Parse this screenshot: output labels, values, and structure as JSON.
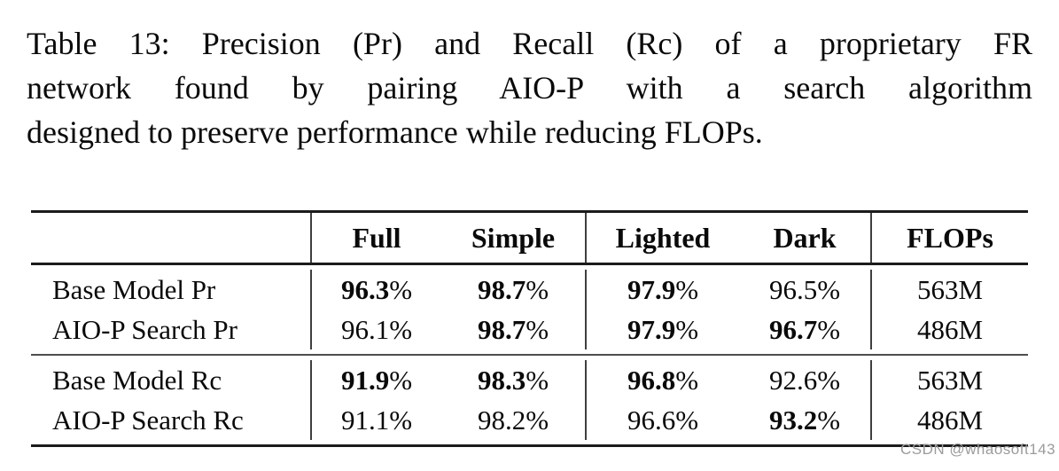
{
  "caption": {
    "lines": [
      "Table 13: Precision (Pr) and Recall (Rc) of a proprietary FR",
      "network found by pairing AIO-P with a search algorithm",
      "designed to preserve performance while reducing FLOPs."
    ]
  },
  "table": {
    "columns": [
      "",
      "Full",
      "Simple",
      "Lighted",
      "Dark",
      "FLOPs"
    ],
    "groups": [
      {
        "name": "precision",
        "rows": [
          {
            "label": "Base Model Pr",
            "cells": [
              {
                "num": "96.3",
                "suffix": "%",
                "bold": true
              },
              {
                "num": "98.7",
                "suffix": "%",
                "bold": true
              },
              {
                "num": "97.9",
                "suffix": "%",
                "bold": true
              },
              {
                "num": "96.5",
                "suffix": "%",
                "bold": false
              },
              {
                "num": "563M",
                "suffix": "",
                "bold": false
              }
            ]
          },
          {
            "label": "AIO-P Search Pr",
            "cells": [
              {
                "num": "96.1",
                "suffix": "%",
                "bold": false
              },
              {
                "num": "98.7",
                "suffix": "%",
                "bold": true
              },
              {
                "num": "97.9",
                "suffix": "%",
                "bold": true
              },
              {
                "num": "96.7",
                "suffix": "%",
                "bold": true
              },
              {
                "num": "486M",
                "suffix": "",
                "bold": false
              }
            ]
          }
        ]
      },
      {
        "name": "recall",
        "rows": [
          {
            "label": "Base Model Rc",
            "cells": [
              {
                "num": "91.9",
                "suffix": "%",
                "bold": true
              },
              {
                "num": "98.3",
                "suffix": "%",
                "bold": true
              },
              {
                "num": "96.8",
                "suffix": "%",
                "bold": true
              },
              {
                "num": "92.6",
                "suffix": "%",
                "bold": false
              },
              {
                "num": "563M",
                "suffix": "",
                "bold": false
              }
            ]
          },
          {
            "label": "AIO-P Search Rc",
            "cells": [
              {
                "num": "91.1",
                "suffix": "%",
                "bold": false
              },
              {
                "num": "98.2",
                "suffix": "%",
                "bold": false
              },
              {
                "num": "96.6",
                "suffix": "%",
                "bold": false
              },
              {
                "num": "93.2",
                "suffix": "%",
                "bold": true
              },
              {
                "num": "486M",
                "suffix": "",
                "bold": false
              }
            ]
          }
        ]
      }
    ]
  },
  "watermark": {
    "text": "CSDN @whaosoft143"
  }
}
